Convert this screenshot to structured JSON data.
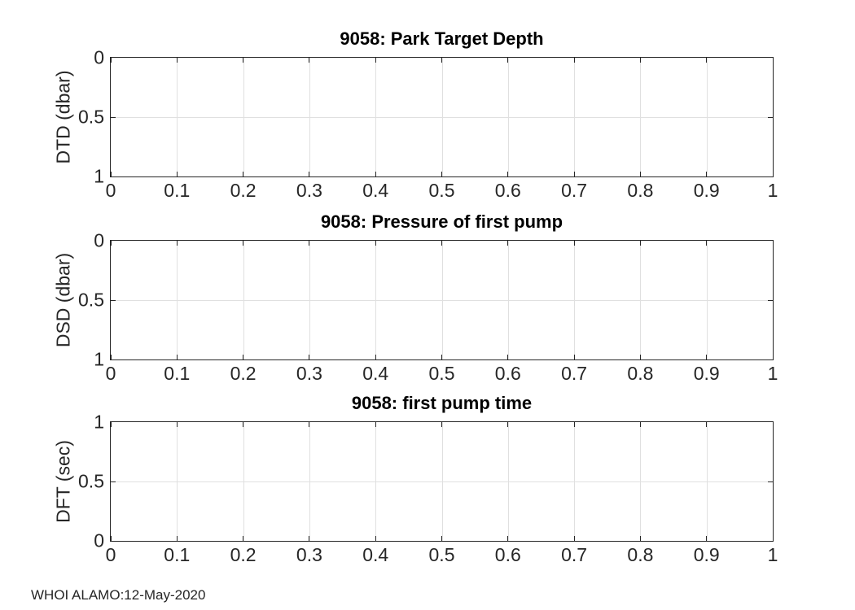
{
  "figure": {
    "footer": "WHOI ALAMO:12-May-2020",
    "background": "#ffffff",
    "axis_color": "#262626",
    "grid_color": "#e0e0e0",
    "text_color": "#262626",
    "title_color": "#000000"
  },
  "chart_data": [
    {
      "type": "line",
      "title": "9058: Park Target Depth",
      "xlabel": "",
      "ylabel": "DTD (dbar)",
      "xlim": [
        0,
        1
      ],
      "ylim": [
        0,
        1
      ],
      "y_dir": "reverse",
      "grid": true,
      "box": true,
      "legend": "none",
      "xticks": [
        0,
        0.1,
        0.2,
        0.3,
        0.4,
        0.5,
        0.6,
        0.7,
        0.8,
        0.9,
        1
      ],
      "xtick_labels": [
        "0",
        "0.1",
        "0.2",
        "0.3",
        "0.4",
        "0.5",
        "0.6",
        "0.7",
        "0.8",
        "0.9",
        "1"
      ],
      "yticks": [
        0,
        0.5,
        1
      ],
      "ytick_labels": [
        "0",
        "0.5",
        "1"
      ],
      "series": []
    },
    {
      "type": "line",
      "title": "9058: Pressure of first pump",
      "xlabel": "",
      "ylabel": "DSD (dbar)",
      "xlim": [
        0,
        1
      ],
      "ylim": [
        0,
        1
      ],
      "y_dir": "reverse",
      "grid": true,
      "box": true,
      "legend": "none",
      "xticks": [
        0,
        0.1,
        0.2,
        0.3,
        0.4,
        0.5,
        0.6,
        0.7,
        0.8,
        0.9,
        1
      ],
      "xtick_labels": [
        "0",
        "0.1",
        "0.2",
        "0.3",
        "0.4",
        "0.5",
        "0.6",
        "0.7",
        "0.8",
        "0.9",
        "1"
      ],
      "yticks": [
        0,
        0.5,
        1
      ],
      "ytick_labels": [
        "0",
        "0.5",
        "1"
      ],
      "series": []
    },
    {
      "type": "line",
      "title": "9058: first pump time",
      "xlabel": "",
      "ylabel": "DFT (sec)",
      "xlim": [
        0,
        1
      ],
      "ylim": [
        0,
        1
      ],
      "y_dir": "normal",
      "grid": true,
      "box": true,
      "legend": "none",
      "xticks": [
        0,
        0.1,
        0.2,
        0.3,
        0.4,
        0.5,
        0.6,
        0.7,
        0.8,
        0.9,
        1
      ],
      "xtick_labels": [
        "0",
        "0.1",
        "0.2",
        "0.3",
        "0.4",
        "0.5",
        "0.6",
        "0.7",
        "0.8",
        "0.9",
        "1"
      ],
      "yticks": [
        0,
        0.5,
        1
      ],
      "ytick_labels": [
        "0",
        "0.5",
        "1"
      ],
      "series": []
    }
  ]
}
